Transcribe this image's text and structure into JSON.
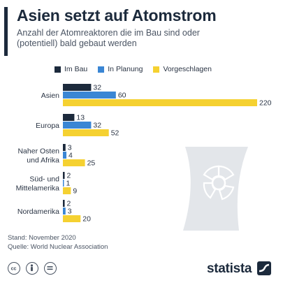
{
  "header": {
    "title": "Asien setzt auf Atomstrom",
    "subtitle": "Anzahl der Atomreaktoren die im Bau sind oder (potentiell) bald gebaut werden"
  },
  "legend": {
    "items": [
      {
        "label": "Im Bau",
        "color": "#1c2a3c"
      },
      {
        "label": "In Planung",
        "color": "#3a86d4"
      },
      {
        "label": "Vorgeschlagen",
        "color": "#f5d131"
      }
    ]
  },
  "chart_data": {
    "type": "bar",
    "orientation": "horizontal",
    "categories": [
      "Asien",
      "Europa",
      "Naher Osten und Afrika",
      "Süd- und Mittelamerika",
      "Nordamerika"
    ],
    "series": [
      {
        "name": "Im Bau",
        "color": "#1c2a3c",
        "values": [
          32,
          13,
          3,
          2,
          2
        ]
      },
      {
        "name": "In Planung",
        "color": "#3a86d4",
        "values": [
          60,
          32,
          4,
          1,
          3
        ]
      },
      {
        "name": "Vorgeschlagen",
        "color": "#f5d131",
        "values": [
          220,
          52,
          25,
          9,
          20
        ]
      }
    ],
    "xlim": [
      0,
      220
    ],
    "grid": false,
    "legend_position": "top"
  },
  "source": {
    "date": "Stand: November 2020",
    "org": "Quelle: World Nuclear Association"
  },
  "footer": {
    "brand": "statista",
    "icons": [
      "cc-icon",
      "person-icon",
      "equals-icon",
      "statista-logo-icon"
    ]
  }
}
